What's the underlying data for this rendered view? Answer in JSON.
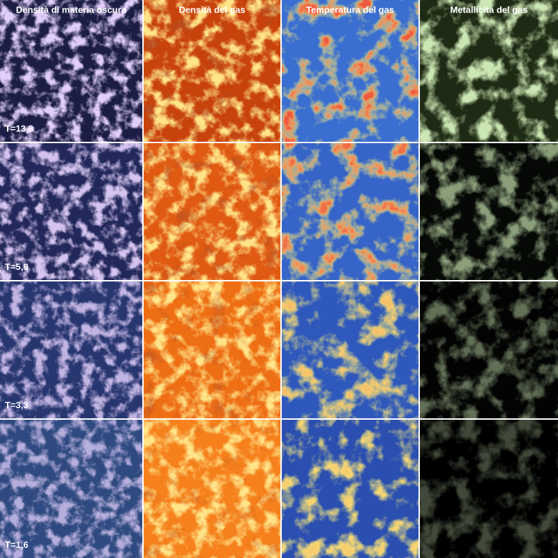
{
  "columns": [
    "Densità di materia oscura",
    "Densità del gas",
    "Temperatura del gas",
    "Metallicità del gas"
  ],
  "rows": [
    "T=13,8",
    "T=5,9",
    "T=3,3",
    "T=1,6"
  ]
}
